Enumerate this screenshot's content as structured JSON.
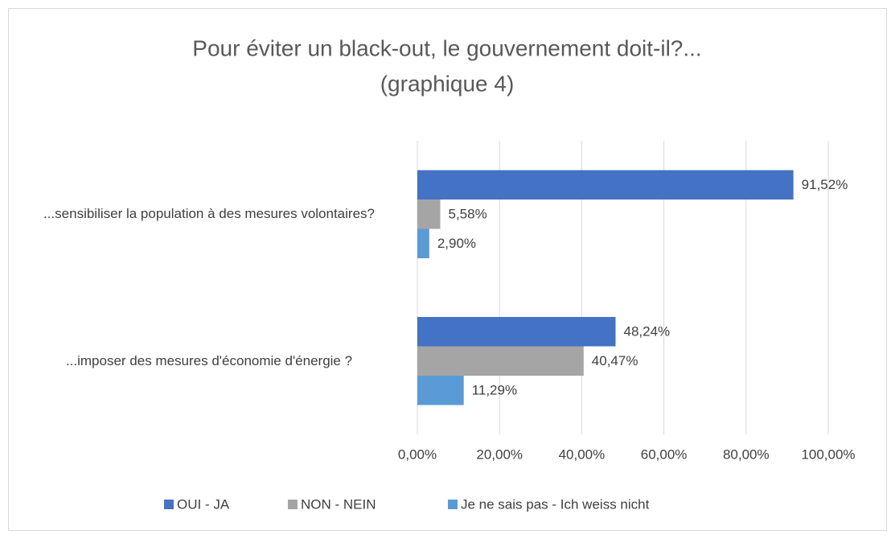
{
  "chart_data": {
    "type": "barh",
    "title": "Pour éviter un black-out, le gouvernement doit-il?...",
    "subtitle": "(graphique 4)",
    "categories": [
      "...sensibiliser la population à des mesures volontaires?",
      "...imposer des mesures d'économie d'énergie ?"
    ],
    "series": [
      {
        "name": "OUI - JA",
        "color": "#4472c4",
        "values": [
          91.52,
          48.24
        ],
        "value_labels": [
          "91,52%",
          "48,24%"
        ]
      },
      {
        "name": "NON - NEIN",
        "color": "#a5a5a5",
        "values": [
          5.58,
          40.47
        ],
        "value_labels": [
          "5,58%",
          "40,47%"
        ]
      },
      {
        "name": "Je ne sais pas - Ich weiss nicht",
        "color": "#5b9bd5",
        "values": [
          2.9,
          11.29
        ],
        "value_labels": [
          "2,90%",
          "11,29%"
        ]
      }
    ],
    "xlim": [
      0,
      100
    ],
    "xticks": [
      {
        "value": 0,
        "label": "0,00%"
      },
      {
        "value": 20,
        "label": "20,00%"
      },
      {
        "value": 40,
        "label": "40,00%"
      },
      {
        "value": 60,
        "label": "60,00%"
      },
      {
        "value": 80,
        "label": "80,00%"
      },
      {
        "value": 100,
        "label": "100,00%"
      }
    ],
    "grid": true,
    "legend": "bottom"
  }
}
